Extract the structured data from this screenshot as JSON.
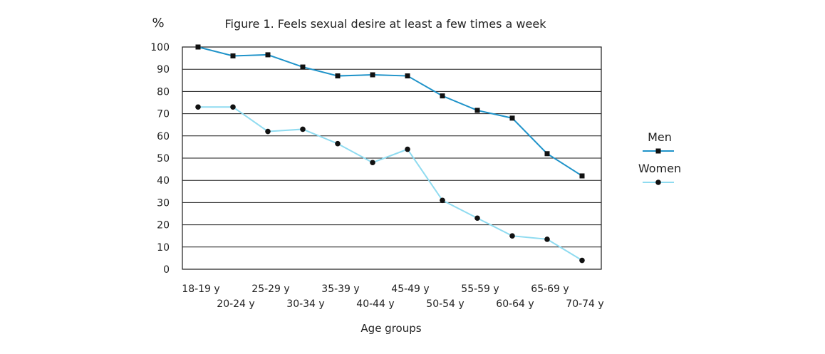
{
  "chart_data": {
    "type": "line",
    "title": "Figure 1. Feels sexual desire at least a few times a week",
    "ylabel": "%",
    "xlabel": "Age groups",
    "categories": [
      "18-19 y",
      "20-24 y",
      "25-29 y",
      "30-34 y",
      "35-39 y",
      "40-44 y",
      "45-49 y",
      "50-54 y",
      "55-59 y",
      "60-64 y",
      "65-69 y",
      "70-74 y"
    ],
    "yticks": [
      0,
      10,
      20,
      30,
      40,
      50,
      60,
      70,
      80,
      90,
      100
    ],
    "ylim": [
      0,
      100
    ],
    "grid": true,
    "legend_position": "right",
    "series": [
      {
        "name": "Men",
        "marker": "square",
        "color": "#1f93c9",
        "values": [
          100,
          96,
          96.5,
          91,
          87,
          87.5,
          87,
          78,
          71.5,
          68,
          52,
          42
        ]
      },
      {
        "name": "Women",
        "marker": "circle",
        "color": "#8fdbf0",
        "values": [
          73,
          73,
          62,
          63,
          56.5,
          48,
          54,
          31,
          23,
          15,
          13.5,
          4
        ]
      }
    ]
  }
}
